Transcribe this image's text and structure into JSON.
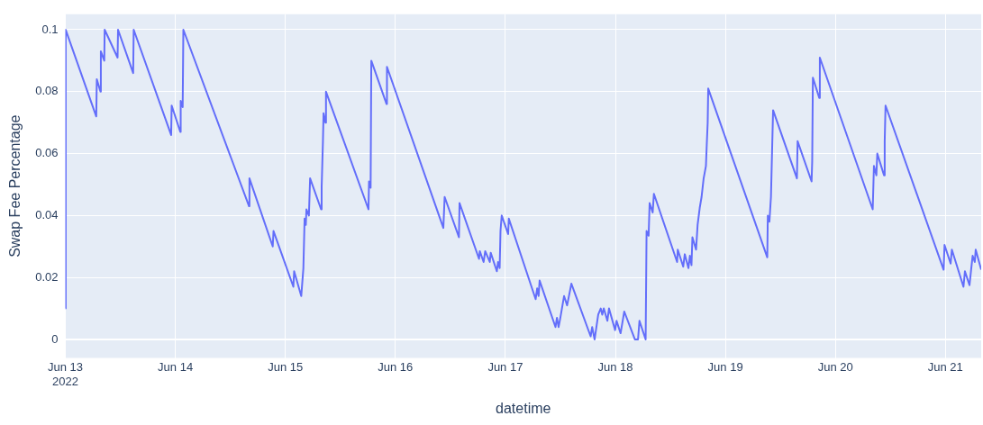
{
  "chart_data": {
    "type": "line",
    "xlabel": "datetime",
    "ylabel": "Swap Fee Percentage",
    "grid": true,
    "legend": false,
    "marker": "none",
    "line_style": "solid",
    "xlim": [
      "2022-06-13",
      "2022-06-21T07:48"
    ],
    "ylim": [
      -0.006,
      0.105
    ],
    "xticks": [
      {
        "value": "2022-06-13",
        "label": "Jun 13\n2022"
      },
      {
        "value": "2022-06-14",
        "label": "Jun 14"
      },
      {
        "value": "2022-06-15",
        "label": "Jun 15"
      },
      {
        "value": "2022-06-16",
        "label": "Jun 16"
      },
      {
        "value": "2022-06-17",
        "label": "Jun 17"
      },
      {
        "value": "2022-06-18",
        "label": "Jun 18"
      },
      {
        "value": "2022-06-19",
        "label": "Jun 19"
      },
      {
        "value": "2022-06-20",
        "label": "Jun 20"
      },
      {
        "value": "2022-06-21",
        "label": "Jun 21"
      }
    ],
    "yticks": [
      0,
      0.02,
      0.04,
      0.06,
      0.08,
      0.1
    ],
    "x": [
      "2022-06-13T00:00",
      "2022-06-13T00:05",
      "2022-06-13T06:45",
      "2022-06-13T06:52",
      "2022-06-13T07:40",
      "2022-06-13T07:45",
      "2022-06-13T08:30",
      "2022-06-13T08:35",
      "2022-06-13T11:24",
      "2022-06-13T11:30",
      "2022-06-13T14:48",
      "2022-06-13T14:55",
      "2022-06-13T23:05",
      "2022-06-13T23:12",
      "2022-06-14T01:05",
      "2022-06-14T01:10",
      "2022-06-14T01:36",
      "2022-06-14T01:45",
      "2022-06-14T16:05",
      "2022-06-14T16:10",
      "2022-06-14T21:15",
      "2022-06-14T21:25",
      "2022-06-15T01:45",
      "2022-06-15T01:55",
      "2022-06-15T03:28",
      "2022-06-15T03:56",
      "2022-06-15T04:12",
      "2022-06-15T04:28",
      "2022-06-15T04:36",
      "2022-06-15T05:08",
      "2022-06-15T05:24",
      "2022-06-15T07:48",
      "2022-06-15T07:55",
      "2022-06-15T08:12",
      "2022-06-15T08:20",
      "2022-06-15T08:45",
      "2022-06-15T08:52",
      "2022-06-15T18:08",
      "2022-06-15T18:15",
      "2022-06-15T18:36",
      "2022-06-15T18:45",
      "2022-06-15T22:05",
      "2022-06-15T22:10",
      "2022-06-16T10:28",
      "2022-06-16T10:45",
      "2022-06-16T13:52",
      "2022-06-16T14:00",
      "2022-06-16T18:15",
      "2022-06-16T18:25",
      "2022-06-16T19:15",
      "2022-06-16T19:36",
      "2022-06-16T20:36",
      "2022-06-16T20:48",
      "2022-06-16T22:08",
      "2022-06-16T22:24",
      "2022-06-16T22:45",
      "2022-06-16T22:56",
      "2022-06-16T23:12",
      "2022-06-17T00:36",
      "2022-06-17T00:45",
      "2022-06-17T06:36",
      "2022-06-17T06:56",
      "2022-06-17T07:15",
      "2022-06-17T07:28",
      "2022-06-17T10:56",
      "2022-06-17T11:15",
      "2022-06-17T11:36",
      "2022-06-17T11:56",
      "2022-06-17T12:48",
      "2022-06-17T13:28",
      "2022-06-17T14:24",
      "2022-06-17T18:36",
      "2022-06-17T18:56",
      "2022-06-17T19:28",
      "2022-06-17T20:15",
      "2022-06-17T20:48",
      "2022-06-17T21:08",
      "2022-06-17T21:28",
      "2022-06-17T22:15",
      "2022-06-17T22:36",
      "2022-06-17T23:56",
      "2022-06-18T00:15",
      "2022-06-18T01:08",
      "2022-06-18T01:56",
      "2022-06-18T04:15",
      "2022-06-18T04:56",
      "2022-06-18T05:15",
      "2022-06-18T06:36",
      "2022-06-18T06:48",
      "2022-06-18T07:15",
      "2022-06-18T07:28",
      "2022-06-18T08:08",
      "2022-06-18T08:24",
      "2022-06-18T13:28",
      "2022-06-18T13:36",
      "2022-06-18T14:48",
      "2022-06-18T15:08",
      "2022-06-18T15:56",
      "2022-06-18T16:15",
      "2022-06-18T16:36",
      "2022-06-18T16:48",
      "2022-06-18T17:36",
      "2022-06-18T17:56",
      "2022-06-18T18:24",
      "2022-06-18T18:48",
      "2022-06-18T19:15",
      "2022-06-18T19:45",
      "2022-06-18T19:56",
      "2022-06-18T20:08",
      "2022-06-18T20:15",
      "2022-06-19T09:08",
      "2022-06-19T09:15",
      "2022-06-19T09:36",
      "2022-06-19T09:56",
      "2022-06-19T10:15",
      "2022-06-19T10:24",
      "2022-06-19T15:36",
      "2022-06-19T15:45",
      "2022-06-19T18:48",
      "2022-06-19T18:56",
      "2022-06-19T19:05",
      "2022-06-19T20:28",
      "2022-06-19T20:36",
      "2022-06-20T08:08",
      "2022-06-20T08:24",
      "2022-06-20T08:56",
      "2022-06-20T09:08",
      "2022-06-20T10:36",
      "2022-06-20T10:45",
      "2022-06-20T10:56",
      "2022-06-20T23:36",
      "2022-06-20T23:48",
      "2022-06-21T01:08",
      "2022-06-21T01:24",
      "2022-06-21T03:56",
      "2022-06-21T04:15",
      "2022-06-21T05:15",
      "2022-06-21T05:36",
      "2022-06-21T05:56",
      "2022-06-21T06:24",
      "2022-06-21T06:36",
      "2022-06-21T07:48"
    ],
    "series": [
      {
        "color": "#636efa",
        "values": [
          0.01,
          0.1,
          0.072,
          0.084,
          0.08,
          0.093,
          0.09,
          0.1,
          0.091,
          0.1,
          0.086,
          0.1,
          0.066,
          0.0755,
          0.067,
          0.077,
          0.075,
          0.1,
          0.043,
          0.052,
          0.03,
          0.035,
          0.017,
          0.022,
          0.014,
          0.023,
          0.039,
          0.037,
          0.042,
          0.04,
          0.052,
          0.042,
          0.049,
          0.064,
          0.073,
          0.07,
          0.08,
          0.042,
          0.051,
          0.049,
          0.09,
          0.076,
          0.088,
          0.036,
          0.046,
          0.033,
          0.044,
          0.026,
          0.0285,
          0.025,
          0.0285,
          0.025,
          0.028,
          0.022,
          0.025,
          0.023,
          0.035,
          0.04,
          0.034,
          0.039,
          0.013,
          0.0165,
          0.014,
          0.019,
          0.004,
          0.007,
          0.004,
          0.0065,
          0.014,
          0.011,
          0.018,
          0.001,
          0.004,
          0,
          0.008,
          0.01,
          0.008,
          0.01,
          0.006,
          0.01,
          0.003,
          0.006,
          0.002,
          0.009,
          0,
          0,
          0.006,
          0,
          0.035,
          0.0335,
          0.044,
          0.041,
          0.047,
          0.025,
          0.029,
          0.0235,
          0.0275,
          0.023,
          0.027,
          0.024,
          0.033,
          0.029,
          0.037,
          0.0425,
          0.046,
          0.052,
          0.056,
          0.063,
          0.07,
          0.081,
          0.0265,
          0.04,
          0.038,
          0.046,
          0.065,
          0.074,
          0.052,
          0.064,
          0.051,
          0.0575,
          0.0845,
          0.078,
          0.091,
          0.042,
          0.056,
          0.053,
          0.06,
          0.053,
          0.064,
          0.0755,
          0.0225,
          0.0305,
          0.0245,
          0.029,
          0.017,
          0.022,
          0.0175,
          0.0225,
          0.027,
          0.025,
          0.029,
          0.0225
        ]
      }
    ]
  }
}
